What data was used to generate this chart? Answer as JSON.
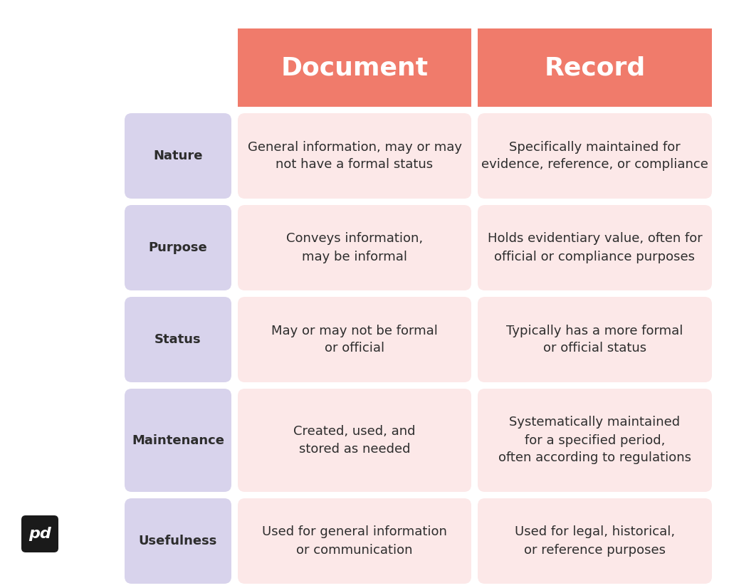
{
  "title_doc": "Document",
  "title_rec": "Record",
  "header_color": "#F07B6B",
  "header_text_color": "#FFFFFF",
  "row_label_bg": "#D8D3EC",
  "row_label_text_color": "#2d2d2d",
  "doc_cell_bg": "#FCE8E8",
  "rec_cell_bg": "#FCE8E8",
  "cell_text_color": "#2d2d2d",
  "bg_color": "#FFFFFF",
  "rows": [
    {
      "label": "Nature",
      "doc": "General information, may or may\nnot have a formal status",
      "rec": "Specifically maintained for\nevidence, reference, or compliance"
    },
    {
      "label": "Purpose",
      "doc": "Conveys information,\nmay be informal",
      "rec": "Holds evidentiary value, often for\nofficial or compliance purposes"
    },
    {
      "label": "Status",
      "doc": "May or may not be formal\nor official",
      "rec": "Typically has a more formal\nor official status"
    },
    {
      "label": "Maintenance",
      "doc": "Created, used, and\nstored as needed",
      "rec": "Systematically maintained\nfor a specified period,\noften according to regulations"
    },
    {
      "label": "Usefulness",
      "doc": "Used for general information\nor communication",
      "rec": "Used for legal, historical,\nor reference purposes"
    }
  ],
  "logo_text": "pd"
}
